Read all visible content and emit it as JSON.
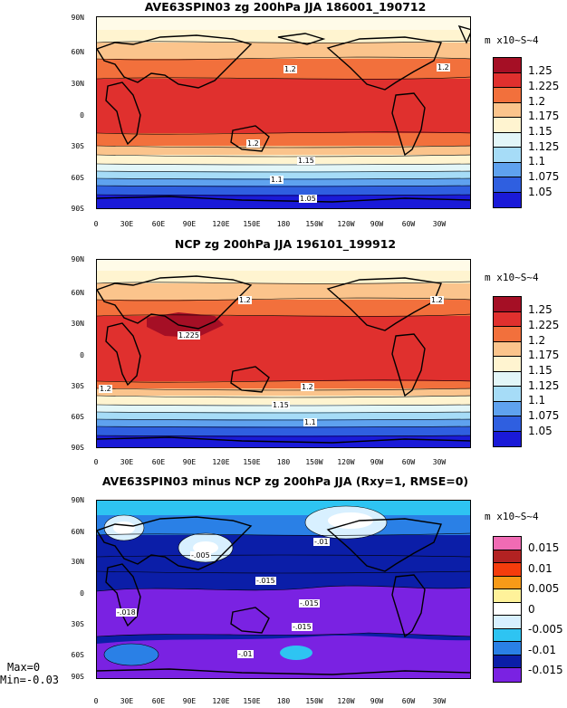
{
  "panels": [
    {
      "title": "AVE63SPIN03 zg 200hPa JJA 186001_190712",
      "unit": "m x10~S~4",
      "levels": [
        "1.25",
        "1.225",
        "1.2",
        "1.175",
        "1.15",
        "1.125",
        "1.1",
        "1.075",
        "1.05"
      ],
      "contour_labels": [
        "1.2",
        "1.2",
        "1.2",
        "1.15",
        "1.1",
        "1.05"
      ]
    },
    {
      "title": "NCP zg 200hPa JJA 196101_199912",
      "unit": "m x10~S~4",
      "levels": [
        "1.25",
        "1.225",
        "1.2",
        "1.175",
        "1.15",
        "1.125",
        "1.1",
        "1.075",
        "1.05"
      ],
      "contour_labels": [
        "1.2",
        "1.2",
        "1.225",
        "1.2",
        "1.2",
        "1.15",
        "1.1"
      ]
    },
    {
      "title": "AVE63SPIN03 minus NCP zg 200hPa JJA (Rxy=1, RMSE=0)",
      "unit": "m x10~S~4",
      "levels": [
        "0.015",
        "0.01",
        "0.005",
        "0",
        "-0.005",
        "-0.01",
        "-0.015"
      ],
      "contour_labels": [
        "-.005",
        "-.01",
        "-.015",
        "-.015",
        "-.018",
        "-.015",
        "-.01"
      ]
    }
  ],
  "axes": {
    "lat_ticks": [
      "90N",
      "60N",
      "30N",
      "0",
      "30S",
      "60S",
      "90S"
    ],
    "lon_ticks": [
      "0",
      "30E",
      "60E",
      "90E",
      "120E",
      "150E",
      "180",
      "150W",
      "120W",
      "90W",
      "60W",
      "30W"
    ]
  },
  "stats": {
    "max": "Max=0",
    "min": "Min=-0.03"
  },
  "colors": {
    "abs_scale": [
      "#a50f25",
      "#e0302e",
      "#f2703c",
      "#fbc48c",
      "#fff4d0",
      "#e2f6f8",
      "#a6dcf7",
      "#5fa2ef",
      "#2f5fe0",
      "#1a1ad8"
    ],
    "abs_legend": [
      "#a50f25",
      "#e0302e",
      "#f2703c",
      "#fbc48c",
      "#fff4d0",
      "#e2f6f8",
      "#a6dcf7",
      "#5fa2ef",
      "#2f5fe0",
      "#1a1ad8"
    ],
    "diff_legend": [
      "#f06bb4",
      "#b22222",
      "#f53c0c",
      "#f79a18",
      "#fff29a",
      "#ffffff",
      "#d8f0ff",
      "#2ec4f2",
      "#2a80e6",
      "#0b1ea8",
      "#7a22e2"
    ]
  }
}
